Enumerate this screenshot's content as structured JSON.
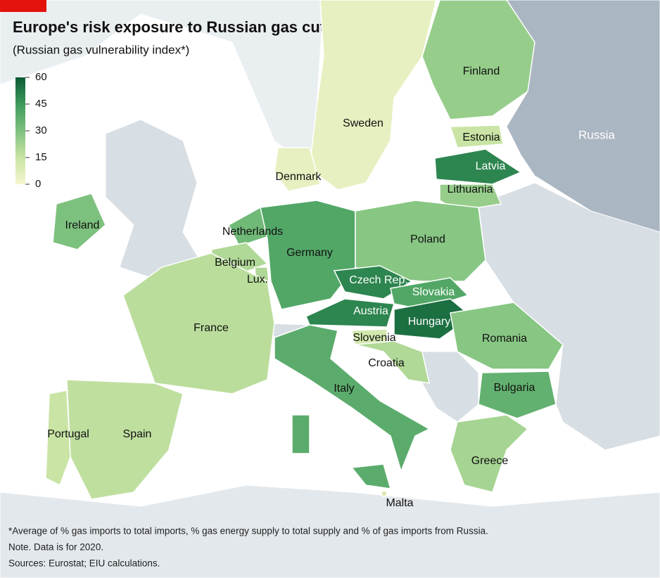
{
  "chart_data": {
    "type": "choropleth",
    "title": "Europe's risk exposure to Russian gas cut-off",
    "subtitle": "(Russian gas vulnerability index*)",
    "colorbar": {
      "lim": [
        0,
        60
      ],
      "ticks": [
        0,
        15,
        30,
        45,
        60
      ],
      "colors": [
        "#f6f6cf",
        "#c9e4a4",
        "#7dc17e",
        "#3d9a5c",
        "#0c5a34"
      ]
    },
    "regions": [
      {
        "name": "Sweden",
        "value": 5
      },
      {
        "name": "Finland",
        "value": 25
      },
      {
        "name": "Estonia",
        "value": 15
      },
      {
        "name": "Latvia",
        "value": 50
      },
      {
        "name": "Lithuania",
        "value": 25
      },
      {
        "name": "Denmark",
        "value": 5
      },
      {
        "name": "Ireland",
        "value": 30
      },
      {
        "name": "Netherlands",
        "value": 33
      },
      {
        "name": "Belgium",
        "value": 20
      },
      {
        "name": "Lux.",
        "value": 20
      },
      {
        "name": "Germany",
        "value": 40
      },
      {
        "name": "Poland",
        "value": 28
      },
      {
        "name": "Czech Rep.",
        "value": 50
      },
      {
        "name": "Slovakia",
        "value": 40
      },
      {
        "name": "Austria",
        "value": 50
      },
      {
        "name": "Hungary",
        "value": 55
      },
      {
        "name": "Slovenia",
        "value": 12
      },
      {
        "name": "Croatia",
        "value": 20
      },
      {
        "name": "Romania",
        "value": 28
      },
      {
        "name": "Bulgaria",
        "value": 36
      },
      {
        "name": "Greece",
        "value": 22
      },
      {
        "name": "France",
        "value": 18
      },
      {
        "name": "Spain",
        "value": 17
      },
      {
        "name": "Portugal",
        "value": 15
      },
      {
        "name": "Italy",
        "value": 38
      },
      {
        "name": "Malta",
        "value": 10
      }
    ],
    "other_labels": [
      "Russia"
    ],
    "notes": [
      "*Average of % gas imports to total imports, % gas energy supply to total supply and % of gas imports from Russia.",
      "Note. Data is for 2020.",
      "Sources: Eurostat; EIU calculations."
    ]
  }
}
